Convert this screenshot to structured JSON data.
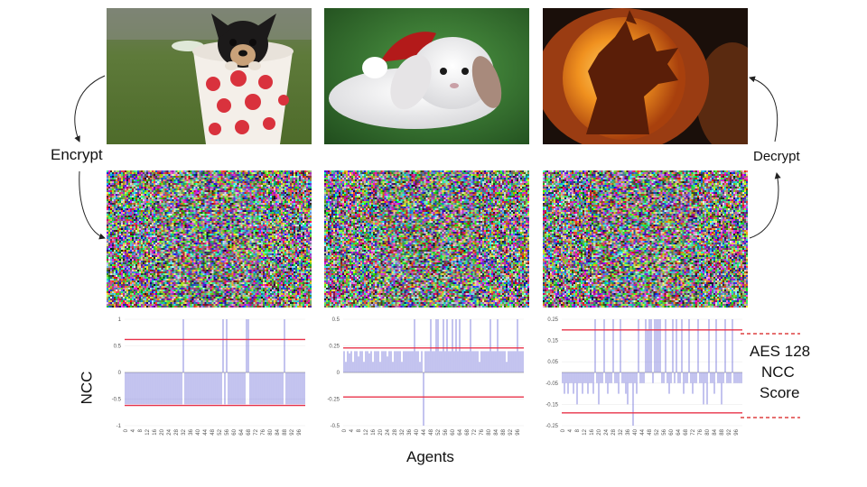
{
  "labels": {
    "encrypt": "Encrypt",
    "decrypt": "Decrypt",
    "ncc_axis": "NCC",
    "agents_axis": "Agents",
    "aes_line1": "AES 128",
    "aes_line2": "NCC",
    "aes_line3": "Score"
  },
  "images": {
    "originals": [
      {
        "subject": "puppy in polka-dot mug"
      },
      {
        "subject": "white bunny with red hat"
      },
      {
        "subject": "carved pumpkin howling wolf"
      }
    ],
    "encrypted": [
      {
        "subject": "random pixel noise"
      },
      {
        "subject": "random pixel noise"
      },
      {
        "subject": "random pixel noise"
      }
    ]
  },
  "colors": {
    "bar": "#7b7bdc",
    "threshold": "#e8324a",
    "dashed": "#d71a1a",
    "zero_line": "#9a9a9a"
  },
  "chart_data": [
    {
      "type": "bar",
      "ylim": [
        -1,
        1
      ],
      "yticks": [
        "1",
        "0.5",
        "0",
        "-0.5",
        "-1"
      ],
      "ytick_values": [
        1,
        0.5,
        0,
        -0.5,
        -1
      ],
      "xticks": [
        "0",
        "4",
        "8",
        "12",
        "16",
        "20",
        "24",
        "28",
        "32",
        "36",
        "40",
        "44",
        "48",
        "52",
        "56",
        "60",
        "64",
        "68",
        "72",
        "76",
        "80",
        "84",
        "88",
        "92",
        "96"
      ],
      "thresholds": [
        0.62,
        -0.62
      ],
      "values": [
        -0.6,
        -0.6,
        -0.6,
        -0.6,
        -0.6,
        -0.6,
        -0.6,
        -0.6,
        -0.6,
        -0.6,
        -0.6,
        -0.6,
        -0.6,
        -0.6,
        -0.6,
        -0.6,
        -0.6,
        -0.6,
        -0.6,
        -0.6,
        -0.6,
        -0.6,
        -0.6,
        -0.6,
        -0.6,
        -0.6,
        -0.6,
        -0.6,
        -0.6,
        -0.6,
        -0.6,
        -0.6,
        1,
        -0.6,
        -0.6,
        -0.6,
        -0.6,
        -0.6,
        -0.6,
        -0.6,
        -0.6,
        -0.6,
        -0.6,
        -0.6,
        -0.6,
        -0.6,
        -0.6,
        -0.6,
        -0.6,
        -0.6,
        -0.6,
        -0.6,
        -0.6,
        -0.6,
        1,
        -0.6,
        1,
        -0.6,
        -0.6,
        -0.6,
        -0.6,
        -0.6,
        -0.6,
        -0.6,
        -0.6,
        -0.6,
        -0.6,
        1,
        1,
        -0.6,
        -0.6,
        -0.6,
        -0.6,
        -0.6,
        -0.6,
        -0.6,
        -0.6,
        -0.6,
        -0.6,
        -0.6,
        -0.6,
        -0.6,
        -0.6,
        -0.6,
        -0.6,
        -0.6,
        -0.6,
        -0.6,
        1,
        -0.6,
        -0.6,
        -0.6,
        -0.6,
        -0.6,
        -0.6,
        -0.6,
        -0.6,
        -0.6,
        -0.6,
        -0.6
      ]
    },
    {
      "type": "bar",
      "ylim": [
        -0.5,
        0.5
      ],
      "yticks": [
        "0.5",
        "0.25",
        "0",
        "-0.25",
        "-0.5"
      ],
      "ytick_values": [
        0.5,
        0.25,
        0,
        -0.25,
        -0.5
      ],
      "xticks": [
        "0",
        "4",
        "8",
        "12",
        "16",
        "20",
        "24",
        "28",
        "32",
        "36",
        "40",
        "44",
        "48",
        "52",
        "56",
        "60",
        "64",
        "68",
        "72",
        "76",
        "80",
        "84",
        "88",
        "92",
        "96"
      ],
      "thresholds": [
        0.23,
        -0.23
      ],
      "values": [
        0.2,
        0.1,
        0.2,
        0.18,
        0.2,
        0.1,
        0.2,
        0.2,
        0.15,
        0.2,
        0.2,
        0.1,
        0.2,
        0.2,
        0.18,
        0.2,
        0.1,
        0.2,
        0.2,
        0.2,
        0.1,
        0.2,
        0.2,
        0.2,
        0.15,
        0.2,
        0.2,
        0.1,
        0.2,
        0.2,
        0.2,
        0.2,
        0.1,
        0.2,
        0.2,
        0.2,
        0.2,
        0.2,
        0.2,
        0.5,
        0.2,
        0.2,
        0.1,
        0.2,
        -0.5,
        0.2,
        0.2,
        0.2,
        0.5,
        0.2,
        0.2,
        0.5,
        0.5,
        0.2,
        0.2,
        0.5,
        0.2,
        0.5,
        0.2,
        0.2,
        0.5,
        0.2,
        0.5,
        0.2,
        0.5,
        0.2,
        0.2,
        0.2,
        0.2,
        0.2,
        0.5,
        0.2,
        0.2,
        0.2,
        0.2,
        0.1,
        0.2,
        0.2,
        0.2,
        0.2,
        0.2,
        0.5,
        0.2,
        0.2,
        0.2,
        0.5,
        0.2,
        0.2,
        0.2,
        0.2,
        0.1,
        0.2,
        0.2,
        0.2,
        0.2,
        0.2,
        0.5,
        0.2,
        0.2,
        0.2
      ]
    },
    {
      "type": "bar",
      "ylim": [
        -0.25,
        0.25
      ],
      "yticks": [
        "0.25",
        "0.15",
        "0.05",
        "-0.05",
        "-0.15",
        "-0.25"
      ],
      "ytick_values": [
        0.25,
        0.15,
        0.05,
        -0.05,
        -0.15,
        -0.25
      ],
      "xticks": [
        "0",
        "4",
        "8",
        "12",
        "16",
        "20",
        "24",
        "28",
        "32",
        "36",
        "40",
        "44",
        "48",
        "52",
        "56",
        "60",
        "64",
        "68",
        "72",
        "76",
        "80",
        "84",
        "88",
        "92",
        "96"
      ],
      "thresholds": [
        0.2,
        -0.19
      ],
      "values": [
        -0.05,
        -0.1,
        -0.05,
        -0.1,
        -0.05,
        -0.05,
        -0.1,
        -0.05,
        -0.15,
        -0.05,
        -0.05,
        -0.1,
        -0.05,
        -0.05,
        -0.1,
        -0.05,
        -0.05,
        -0.1,
        0.25,
        -0.05,
        -0.15,
        -0.05,
        -0.05,
        0.25,
        -0.05,
        -0.1,
        -0.05,
        -0.05,
        0.25,
        -0.05,
        -0.05,
        -0.1,
        0.25,
        -0.05,
        -0.05,
        -0.1,
        -0.15,
        -0.05,
        -0.05,
        -0.25,
        -0.05,
        -0.1,
        0.25,
        -0.05,
        -0.05,
        -0.05,
        0.25,
        0.2,
        0.25,
        0.25,
        -0.05,
        0.25,
        0.25,
        0.25,
        0.25,
        -0.05,
        -0.05,
        0.25,
        -0.05,
        -0.1,
        -0.05,
        0.25,
        -0.05,
        0.25,
        -0.05,
        -0.05,
        0.25,
        -0.1,
        -0.05,
        -0.05,
        0.25,
        -0.05,
        -0.1,
        -0.05,
        -0.05,
        0.25,
        -0.05,
        -0.05,
        -0.15,
        -0.05,
        -0.15,
        0.25,
        -0.05,
        -0.05,
        -0.1,
        0.25,
        -0.05,
        -0.05,
        -0.15,
        -0.05,
        0.25,
        -0.05,
        -0.05,
        -0.05,
        0.25,
        -0.05,
        -0.05,
        -0.05,
        -0.05,
        -0.05
      ]
    }
  ]
}
